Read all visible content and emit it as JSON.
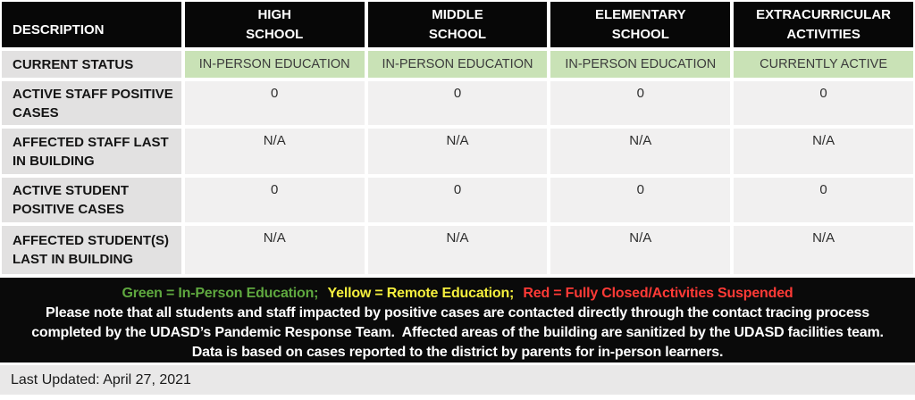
{
  "table": {
    "columns": [
      "DESCRIPTION",
      "HIGH\nSCHOOL",
      "MIDDLE\nSCHOOL",
      "ELEMENTARY\nSCHOOL",
      "EXTRACURRICULAR\nACTIVITIES"
    ],
    "rows": [
      {
        "label": "CURRENT STATUS",
        "values": [
          "IN-PERSON EDUCATION",
          "IN-PERSON EDUCATION",
          "IN-PERSON EDUCATION",
          "CURRENTLY ACTIVE"
        ]
      },
      {
        "label": "ACTIVE STAFF POSITIVE CASES",
        "values": [
          "0",
          "0",
          "0",
          "0"
        ]
      },
      {
        "label": "AFFECTED STAFF LAST IN BUILDING",
        "values": [
          "N/A",
          "N/A",
          "N/A",
          "N/A"
        ]
      },
      {
        "label": "ACTIVE STUDENT POSITIVE CASES",
        "values": [
          "0",
          "0",
          "0",
          "0"
        ]
      },
      {
        "label": "AFFECTED STUDENT(S) LAST IN BUILDING",
        "values": [
          "N/A",
          "N/A",
          "N/A",
          "N/A"
        ]
      }
    ]
  },
  "legend": {
    "segments": [
      {
        "text": "Green = In-Person Education;",
        "color": "#5fa83f"
      },
      {
        "text": "Yellow = Remote Education;",
        "color": "#f5ef3d"
      },
      {
        "text": "Red = Fully Closed/Activities Suspended",
        "color": "#ff3a36"
      }
    ]
  },
  "notes": {
    "line1": "Please note that all students and staff impacted by positive cases are contacted directly through the contact tracing process",
    "line2": "completed by the UDASD’s Pandemic Response Team.  Affected areas of the building are sanitized by the UDASD facilities team.",
    "line3": "Data is based on cases reported to the district by parents for in-person learners."
  },
  "footer": {
    "last_updated": "Last Updated: April 27, 2021"
  },
  "colors": {
    "status_cell_green": "#c9e2b6",
    "header_black": "#070707",
    "description_gray": "#e2e1e1",
    "data_cell_gray": "#f1f0f0",
    "updated_bar_gray": "#e9e8e8"
  }
}
